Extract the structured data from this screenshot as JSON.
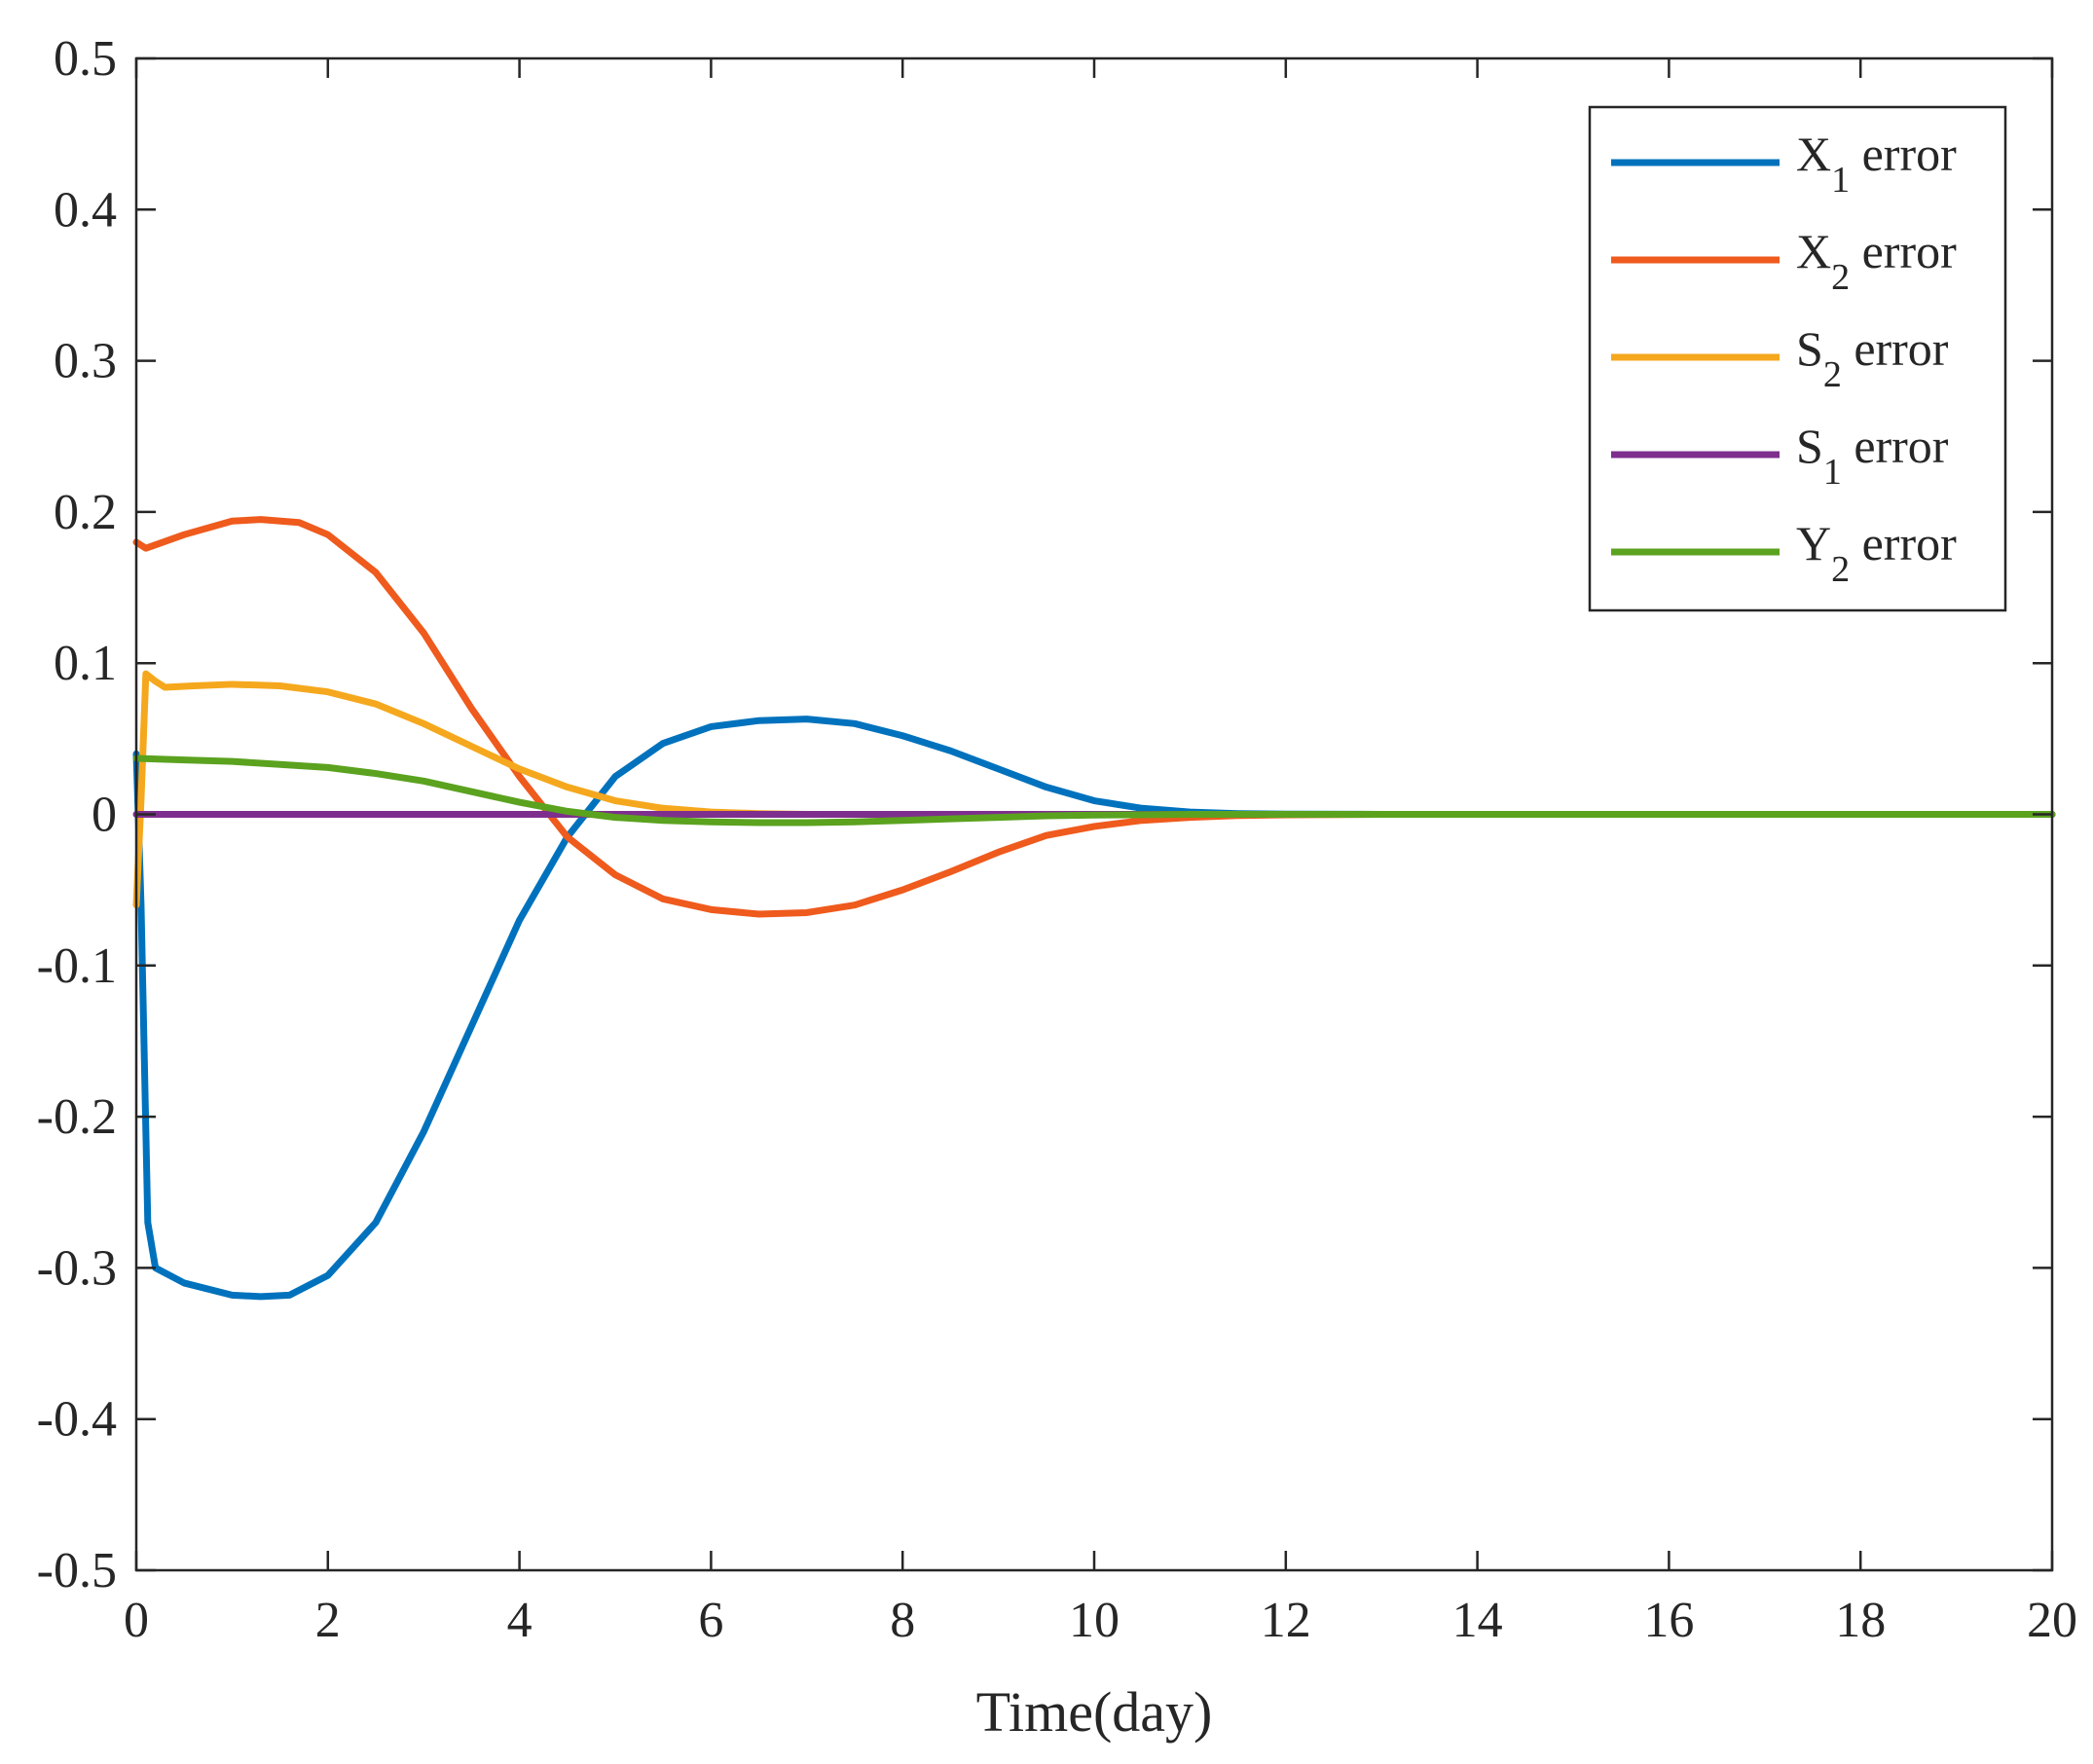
{
  "chart_data": {
    "type": "line",
    "title": "",
    "xlabel": "Time(day)",
    "ylabel": "",
    "xlim": [
      0,
      20
    ],
    "ylim": [
      -0.5,
      0.5
    ],
    "xticks": [
      0,
      2,
      4,
      6,
      8,
      10,
      12,
      14,
      16,
      18,
      20
    ],
    "yticks": [
      -0.5,
      -0.4,
      -0.3,
      -0.2,
      -0.1,
      0,
      0.1,
      0.2,
      0.3,
      0.4,
      0.5
    ],
    "xtick_labels": [
      "0",
      "2",
      "4",
      "6",
      "8",
      "10",
      "12",
      "14",
      "16",
      "18",
      "20"
    ],
    "ytick_labels": [
      "-0.5",
      "-0.4",
      "-0.3",
      "-0.2",
      "-0.1",
      "0",
      "0.1",
      "0.2",
      "0.3",
      "0.4",
      "0.5"
    ],
    "grid": false,
    "legend_position": "top-right",
    "series": [
      {
        "name": "X1 error",
        "label_main": "X",
        "label_sub": "1",
        "label_rest": " error",
        "color": "#0072BD",
        "x": [
          0,
          0.05,
          0.12,
          0.2,
          0.5,
          1.0,
          1.3,
          1.6,
          2.0,
          2.5,
          3.0,
          3.5,
          4.0,
          4.5,
          5.0,
          5.5,
          6.0,
          6.5,
          7.0,
          7.5,
          8.0,
          8.5,
          9.0,
          9.5,
          10.0,
          10.5,
          11.0,
          11.5,
          12.0,
          13.0,
          14.0,
          20.0
        ],
        "y": [
          0.04,
          -0.06,
          -0.27,
          -0.3,
          -0.31,
          -0.318,
          -0.319,
          -0.318,
          -0.305,
          -0.27,
          -0.21,
          -0.14,
          -0.07,
          -0.015,
          0.025,
          0.047,
          0.058,
          0.062,
          0.063,
          0.06,
          0.052,
          0.042,
          0.03,
          0.018,
          0.009,
          0.004,
          0.0015,
          0.0005,
          0.0002,
          0.0,
          0.0,
          0.0
        ]
      },
      {
        "name": "X2 error",
        "label_main": "X",
        "label_sub": "2",
        "label_rest": " error",
        "color": "#EF5A1D",
        "x": [
          0,
          0.1,
          0.5,
          1.0,
          1.3,
          1.7,
          2.0,
          2.5,
          3.0,
          3.5,
          4.0,
          4.5,
          5.0,
          5.5,
          6.0,
          6.5,
          7.0,
          7.5,
          8.0,
          8.5,
          9.0,
          9.5,
          10.0,
          10.5,
          11.0,
          11.5,
          12.0,
          13.0,
          20.0
        ],
        "y": [
          0.18,
          0.176,
          0.185,
          0.194,
          0.195,
          0.193,
          0.185,
          0.16,
          0.12,
          0.07,
          0.025,
          -0.015,
          -0.04,
          -0.056,
          -0.063,
          -0.066,
          -0.065,
          -0.06,
          -0.05,
          -0.038,
          -0.025,
          -0.014,
          -0.008,
          -0.004,
          -0.002,
          -0.0008,
          -0.0003,
          0.0,
          0.0
        ]
      },
      {
        "name": "S2 error",
        "label_main": "S",
        "label_sub": "2",
        "label_rest": " error",
        "color": "#F5A81D",
        "x": [
          0,
          0.05,
          0.1,
          0.2,
          0.3,
          0.6,
          1.0,
          1.5,
          2.0,
          2.5,
          3.0,
          3.5,
          4.0,
          4.5,
          5.0,
          5.5,
          6.0,
          6.5,
          7.0,
          7.5,
          8.0,
          9.0,
          20.0
        ],
        "y": [
          -0.06,
          0.01,
          0.093,
          0.088,
          0.084,
          0.085,
          0.086,
          0.085,
          0.081,
          0.073,
          0.06,
          0.045,
          0.03,
          0.018,
          0.009,
          0.004,
          0.0015,
          0.0005,
          0.0,
          0.0,
          0.0,
          0.0,
          0.0
        ]
      },
      {
        "name": "S1 error",
        "label_main": "S",
        "label_sub": "1",
        "label_rest": " error",
        "color": "#7E2F8E",
        "x": [
          0,
          20
        ],
        "y": [
          0.0,
          0.0
        ]
      },
      {
        "name": "Y2 error",
        "label_main": "Y",
        "label_sub": "2",
        "label_rest": " error",
        "color": "#5BA21F",
        "x": [
          0,
          0.5,
          1.0,
          1.5,
          2.0,
          2.5,
          3.0,
          3.5,
          4.0,
          4.5,
          5.0,
          5.5,
          6.0,
          6.5,
          7.0,
          7.5,
          8.0,
          8.5,
          9.0,
          9.5,
          10.0,
          11.0,
          12.0,
          20.0
        ],
        "y": [
          0.037,
          0.036,
          0.035,
          0.033,
          0.031,
          0.027,
          0.022,
          0.015,
          0.008,
          0.002,
          -0.002,
          -0.004,
          -0.005,
          -0.0055,
          -0.0055,
          -0.005,
          -0.004,
          -0.003,
          -0.002,
          -0.001,
          -0.0005,
          0.0,
          0.0,
          0.0
        ]
      }
    ]
  }
}
